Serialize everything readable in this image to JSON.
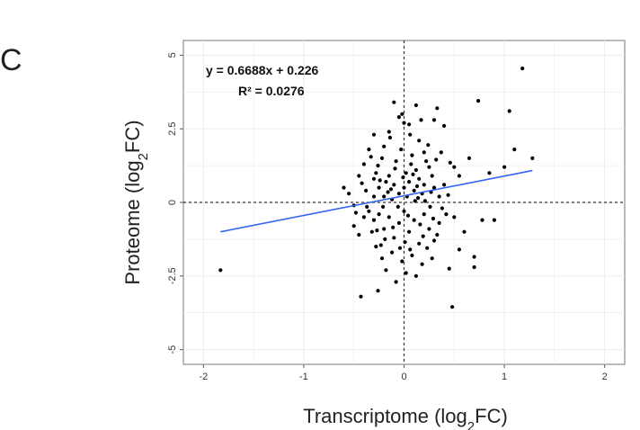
{
  "panel_label": "C",
  "chart_data": {
    "type": "scatter",
    "xlabel": "Transcriptome (log2FC)",
    "ylabel": "Proteome (log2FC)",
    "xlim": [
      -2.2,
      2.2
    ],
    "ylim": [
      -5.5,
      5.5
    ],
    "x_ticks": [
      -2,
      -1,
      0,
      1,
      2
    ],
    "y_ticks": [
      -5,
      -2.5,
      0,
      2.5,
      5
    ],
    "x_tick_labels": [
      "-2",
      "-1",
      "0",
      "1",
      "2"
    ],
    "y_tick_labels": [
      "-5",
      "-2.5",
      "0",
      "2.5",
      "5"
    ],
    "grid": true,
    "reference_lines": {
      "x": 0,
      "y": 0,
      "style": "dashed"
    },
    "regression": {
      "equation": "y = 0.6688x + 0.226",
      "r_squared": "R² = 0.0276",
      "slope": 0.6688,
      "intercept": 0.226,
      "x_range": [
        -1.83,
        1.28
      ],
      "color": "#3366ee"
    },
    "point_color": "#000000",
    "points": [
      [
        -1.83,
        -2.3
      ],
      [
        -0.43,
        -3.2
      ],
      [
        -0.26,
        -3.0
      ],
      [
        0.48,
        -3.55
      ],
      [
        0.02,
        -2.4
      ],
      [
        -0.1,
        3.4
      ],
      [
        0.12,
        3.3
      ],
      [
        0.33,
        3.2
      ],
      [
        0.74,
        3.45
      ],
      [
        1.05,
        3.1
      ],
      [
        1.18,
        4.55
      ],
      [
        1.28,
        1.5
      ],
      [
        1.1,
        1.8
      ],
      [
        1.0,
        1.2
      ],
      [
        0.65,
        1.5
      ],
      [
        0.6,
        -1.0
      ],
      [
        0.78,
        -0.6
      ],
      [
        0.7,
        -1.85
      ],
      [
        0.7,
        -2.2
      ],
      [
        0.45,
        -2.25
      ],
      [
        -0.6,
        0.5
      ],
      [
        -0.5,
        -0.1
      ],
      [
        -0.5,
        -0.8
      ],
      [
        -0.45,
        -1.1
      ],
      [
        -0.55,
        0.3
      ],
      [
        0.55,
        0.9
      ],
      [
        0.5,
        1.2
      ],
      [
        0.4,
        2.6
      ],
      [
        0.3,
        2.8
      ],
      [
        -0.3,
        2.3
      ],
      [
        -0.35,
        1.8
      ],
      [
        -0.4,
        1.3
      ],
      [
        -0.3,
        0.8
      ],
      [
        -0.2,
        1.9
      ],
      [
        -0.15,
        2.4
      ],
      [
        -0.05,
        2.9
      ],
      [
        0.0,
        2.7
      ],
      [
        0.05,
        2.65
      ],
      [
        0.15,
        2.1
      ],
      [
        0.2,
        1.7
      ],
      [
        0.25,
        1.2
      ],
      [
        0.28,
        0.9
      ],
      [
        0.3,
        0.5
      ],
      [
        0.35,
        0.2
      ],
      [
        0.38,
        -0.2
      ],
      [
        -0.25,
        0.5
      ],
      [
        -0.2,
        0.2
      ],
      [
        -0.15,
        0.9
      ],
      [
        -0.1,
        0.6
      ],
      [
        -0.08,
        1.4
      ],
      [
        -0.05,
        0.3
      ],
      [
        0.02,
        1.0
      ],
      [
        0.05,
        0.7
      ],
      [
        0.08,
        1.6
      ],
      [
        0.1,
        0.4
      ],
      [
        0.12,
        1.1
      ],
      [
        0.15,
        0.8
      ],
      [
        0.18,
        0.3
      ],
      [
        0.2,
        0.6
      ],
      [
        0.22,
        1.4
      ],
      [
        -0.3,
        0.2
      ],
      [
        -0.28,
        1.0
      ],
      [
        -0.22,
        1.5
      ],
      [
        -0.18,
        0.7
      ],
      [
        -0.12,
        0.1
      ],
      [
        -0.03,
        1.8
      ],
      [
        0.0,
        0.5
      ],
      [
        0.03,
        0.2
      ],
      [
        0.07,
        1.3
      ],
      [
        0.11,
        0.05
      ],
      [
        -0.35,
        -0.3
      ],
      [
        -0.3,
        -0.6
      ],
      [
        -0.25,
        -0.4
      ],
      [
        -0.2,
        -0.9
      ],
      [
        -0.15,
        -0.5
      ],
      [
        -0.1,
        -1.2
      ],
      [
        -0.05,
        -0.7
      ],
      [
        0.0,
        -0.3
      ],
      [
        0.05,
        -1.0
      ],
      [
        0.1,
        -0.6
      ],
      [
        0.15,
        -1.4
      ],
      [
        0.2,
        -0.4
      ],
      [
        0.25,
        -0.9
      ],
      [
        0.3,
        -1.3
      ],
      [
        0.35,
        -0.7
      ],
      [
        -0.28,
        -1.5
      ],
      [
        -0.22,
        -1.9
      ],
      [
        -0.12,
        -1.7
      ],
      [
        -0.02,
        -2.0
      ],
      [
        0.08,
        -1.8
      ],
      [
        0.18,
        -2.1
      ],
      [
        0.28,
        -1.9
      ],
      [
        -0.18,
        -2.3
      ],
      [
        0.12,
        -2.5
      ],
      [
        -0.08,
        -2.7
      ],
      [
        -0.4,
        -0.5
      ],
      [
        0.42,
        -0.4
      ],
      [
        -0.38,
        0.4
      ],
      [
        0.4,
        0.6
      ],
      [
        -0.32,
        -1.0
      ],
      [
        0.33,
        -1.1
      ],
      [
        -0.26,
        1.25
      ],
      [
        0.24,
        1.95
      ],
      [
        -0.14,
        2.2
      ],
      [
        0.06,
        2.3
      ],
      [
        -0.06,
        -0.15
      ],
      [
        -0.01,
        0.85
      ],
      [
        0.04,
        -0.45
      ],
      [
        0.09,
        0.95
      ],
      [
        -0.11,
        -0.85
      ],
      [
        0.14,
        0.15
      ],
      [
        -0.16,
        0.35
      ],
      [
        0.16,
        -0.75
      ],
      [
        -0.21,
        -0.15
      ],
      [
        0.21,
        0.05
      ],
      [
        -0.24,
        0.75
      ],
      [
        0.26,
        -0.15
      ],
      [
        -0.27,
        -0.95
      ],
      [
        0.27,
        0.35
      ],
      [
        -0.09,
        1.15
      ],
      [
        0.01,
        -1.35
      ],
      [
        -0.04,
        -1.55
      ],
      [
        0.06,
        -1.6
      ],
      [
        -0.13,
        0.45
      ],
      [
        0.13,
        0.55
      ],
      [
        0.9,
        -0.6
      ],
      [
        0.85,
        1.0
      ],
      [
        -0.45,
        0.9
      ],
      [
        0.5,
        -0.5
      ],
      [
        0.55,
        -1.6
      ],
      [
        -0.02,
        3.0
      ],
      [
        0.17,
        2.8
      ],
      [
        -0.33,
        1.55
      ],
      [
        0.32,
        1.45
      ],
      [
        0.37,
        1.7
      ],
      [
        -0.37,
        -0.15
      ],
      [
        -0.42,
        0.65
      ],
      [
        0.44,
        0.25
      ],
      [
        0.46,
        1.35
      ],
      [
        -0.48,
        -0.35
      ],
      [
        0.19,
        -1.15
      ],
      [
        -0.19,
        -1.25
      ],
      [
        0.23,
        -1.55
      ],
      [
        -0.23,
        -1.45
      ],
      [
        0.29,
        -0.55
      ]
    ]
  }
}
